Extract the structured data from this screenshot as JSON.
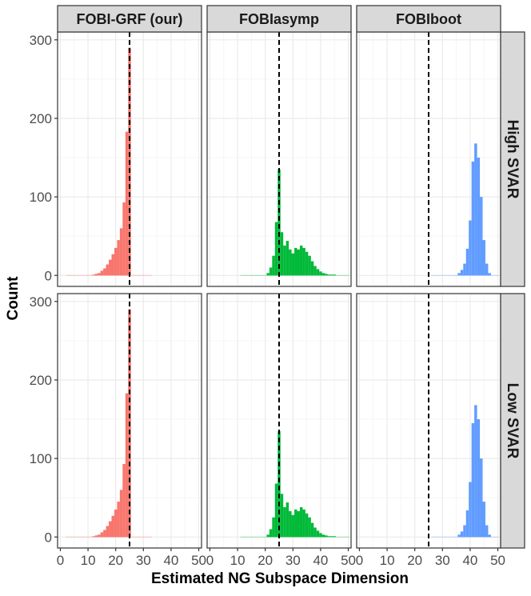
{
  "chart_data": {
    "type": "bar",
    "chart_style": "faceted histogram grid",
    "xlabel": "Estimated NG Subspace Dimension",
    "ylabel": "Count",
    "xlim": [
      -1,
      51
    ],
    "ylim": [
      -14,
      310
    ],
    "x_ticks": [
      0,
      10,
      20,
      30,
      40,
      50
    ],
    "y_ticks": [
      0,
      100,
      200,
      300
    ],
    "grid": true,
    "reference_line": {
      "x": 25,
      "style": "dashed",
      "color": "#000000"
    },
    "methods": [
      "FOBI-GRF (our)",
      "FOBIasymp",
      "FOBIboot"
    ],
    "conditions": [
      "High SVAR",
      "Low SVAR"
    ],
    "colors": {
      "FOBI-GRF (our)": "#F8766D",
      "FOBIasymp": "#00BA38",
      "FOBIboot": "#619CFF",
      "strip_bg": "#D9D9D9",
      "panel_border": "#333333",
      "grid": "#EBEBEB"
    },
    "bin_width": 1,
    "histograms": {
      "FOBI-GRF (our)": {
        "x": [
          12,
          13,
          14,
          15,
          16,
          17,
          18,
          19,
          20,
          21,
          22,
          23,
          24,
          25
        ],
        "counts": [
          1,
          2,
          3,
          6,
          9,
          14,
          20,
          27,
          35,
          45,
          60,
          93,
          183,
          290
        ]
      },
      "FOBIasymp": {
        "x": [
          21,
          22,
          23,
          24,
          25,
          26,
          27,
          28,
          29,
          30,
          31,
          32,
          33,
          34,
          35,
          36,
          37,
          38,
          39,
          40,
          41,
          42,
          43,
          44,
          45
        ],
        "counts": [
          3,
          10,
          25,
          68,
          135,
          55,
          38,
          44,
          33,
          28,
          35,
          33,
          38,
          35,
          30,
          25,
          18,
          12,
          8,
          5,
          3,
          2,
          1,
          1,
          1
        ]
      },
      "FOBIboot": {
        "x": [
          36,
          37,
          38,
          39,
          40,
          41,
          42,
          43,
          44,
          45,
          46,
          47
        ],
        "counts": [
          3,
          7,
          15,
          34,
          70,
          145,
          168,
          150,
          100,
          45,
          15,
          3
        ]
      }
    },
    "panels": [
      {
        "row": "High SVAR",
        "column": "FOBI-GRF (our)",
        "histogram": "FOBI-GRF (our)"
      },
      {
        "row": "High SVAR",
        "column": "FOBIasymp",
        "histogram": "FOBIasymp"
      },
      {
        "row": "High SVAR",
        "column": "FOBIboot",
        "histogram": "FOBIboot"
      },
      {
        "row": "Low SVAR",
        "column": "FOBI-GRF (our)",
        "histogram": "FOBI-GRF (our)"
      },
      {
        "row": "Low SVAR",
        "column": "FOBIasymp",
        "histogram": "FOBIasymp"
      },
      {
        "row": "Low SVAR",
        "column": "FOBIboot",
        "histogram": "FOBIboot"
      }
    ]
  }
}
